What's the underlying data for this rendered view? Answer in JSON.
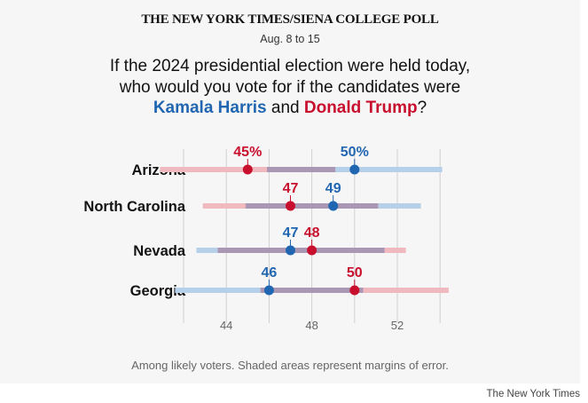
{
  "header": {
    "title": "THE NEW YORK TIMES/SIENA COLLEGE POLL",
    "dates": "Aug. 8 to 15",
    "question_line1": "If the 2024 presidential election were held today,",
    "question_line2": "who would you vote for if the candidates were",
    "question_harris": "Kamala Harris",
    "question_and": " and ",
    "question_trump": "Donald Trump",
    "question_end": "?"
  },
  "footnote": "Among likely voters. Shaded areas represent margins of error.",
  "credit": "The New York Times",
  "colors": {
    "harris": "#2166b0",
    "trump": "#c8102e",
    "harris_band": "#b7d0ea",
    "trump_band": "#efb9bf",
    "overlap_band": "#aa97b3",
    "grid": "#d0d0d0"
  },
  "chart_data": {
    "type": "dot-range",
    "title": "If the 2024 presidential election were held today, who would you vote for if the candidates were Kamala Harris and Donald Trump?",
    "series": [
      {
        "name": "Kamala Harris",
        "color": "#2166b0"
      },
      {
        "name": "Donald Trump",
        "color": "#c8102e"
      }
    ],
    "xlim": [
      42,
      54
    ],
    "xticks": [
      44,
      48,
      52
    ],
    "xtick_labels": [
      "44",
      "48",
      "52"
    ],
    "grid": true,
    "states": [
      {
        "name": "Arizona",
        "harris": 50,
        "trump": 45,
        "harris_label": "50%",
        "trump_label": "45%",
        "harris_range": [
          45.9,
          54.1
        ],
        "trump_range": [
          40.9,
          49.1
        ],
        "label_order": "trump-harris"
      },
      {
        "name": "North Carolina",
        "harris": 49,
        "trump": 47,
        "harris_label": "49",
        "trump_label": "47",
        "harris_range": [
          44.9,
          53.1
        ],
        "trump_range": [
          42.9,
          51.1
        ],
        "label_order": "trump-harris"
      },
      {
        "name": "Nevada",
        "harris": 47,
        "trump": 48,
        "harris_label": "47",
        "trump_label": "48",
        "harris_range": [
          42.6,
          51.4
        ],
        "trump_range": [
          43.6,
          52.4
        ],
        "label_order": "harris-trump"
      },
      {
        "name": "Georgia",
        "harris": 46,
        "trump": 50,
        "harris_label": "46",
        "trump_label": "50",
        "harris_range": [
          41.6,
          50.4
        ],
        "trump_range": [
          45.6,
          54.4
        ],
        "label_order": "harris-trump"
      }
    ]
  }
}
